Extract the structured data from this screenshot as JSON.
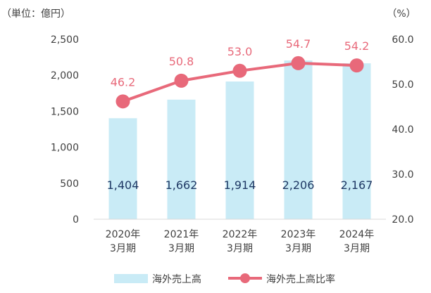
{
  "chart_data": {
    "type": "bar",
    "title": "",
    "left_axis_unit": "（単位：億円）",
    "right_axis_unit": "（%）",
    "categories": [
      [
        "2020年",
        "3月期"
      ],
      [
        "2021年",
        "3月期"
      ],
      [
        "2022年",
        "3月期"
      ],
      [
        "2023年",
        "3月期"
      ],
      [
        "2024年",
        "3月期"
      ]
    ],
    "left_axis": {
      "ylim": [
        0,
        2500
      ],
      "ticks": [
        "0",
        "500",
        "1,000",
        "1,500",
        "2,000",
        "2,500"
      ]
    },
    "right_axis": {
      "ylim": [
        20,
        60
      ],
      "ticks": [
        "20.0",
        "30.0",
        "40.0",
        "50.0",
        "60.0"
      ]
    },
    "series": [
      {
        "name": "海外売上高",
        "type": "bar",
        "axis": "left",
        "color": "#c9ebf6",
        "values": [
          1404,
          1662,
          1914,
          2206,
          2167
        ],
        "labels": [
          "1,404",
          "1,662",
          "1,914",
          "2,206",
          "2,167"
        ]
      },
      {
        "name": "海外売上高比率",
        "type": "line",
        "axis": "right",
        "color": "#e8697a",
        "values": [
          46.2,
          50.8,
          53.0,
          54.7,
          54.2
        ],
        "labels": [
          "46.2",
          "50.8",
          "53.0",
          "54.7",
          "54.2"
        ]
      }
    ],
    "grid": false,
    "legend": "bottom"
  }
}
